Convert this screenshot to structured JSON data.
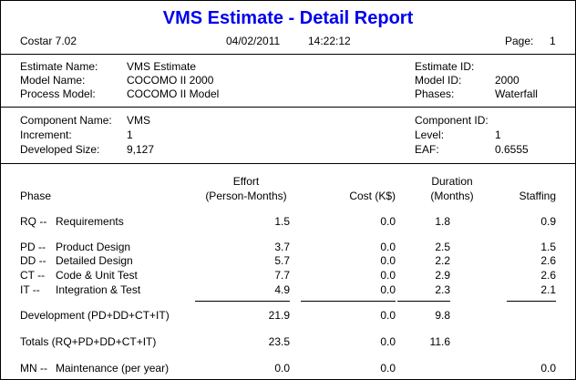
{
  "header": {
    "title": "VMS Estimate - Detail Report",
    "app_version": "Costar 7.02",
    "date": "04/02/2011",
    "time": "14:22:12",
    "page_label": "Page:",
    "page_number": "1"
  },
  "estimate": {
    "name_label": "Estimate Name:",
    "name": "VMS Estimate",
    "model_label": "Model Name:",
    "model": "COCOMO II 2000",
    "process_label": "Process Model:",
    "process": "COCOMO II Model",
    "id_label": "Estimate ID:",
    "id": "",
    "model_id_label": "Model ID:",
    "model_id": "2000",
    "phases_label": "Phases:",
    "phases": "Waterfall"
  },
  "component": {
    "name_label": "Component Name:",
    "name": "VMS",
    "increment_label": "Increment:",
    "increment": "1",
    "size_label": "Developed Size:",
    "size": "9,127",
    "id_label": "Component ID:",
    "id": "",
    "level_label": "Level:",
    "level": "1",
    "eaf_label": "EAF:",
    "eaf": "0.6555"
  },
  "table": {
    "col_phase": "Phase",
    "col_effort_1": "Effort",
    "col_effort_2": "(Person-Months)",
    "col_cost": "Cost (K$)",
    "col_duration_1": "Duration",
    "col_duration_2": "(Months)",
    "col_staffing": "Staffing",
    "rows": [
      {
        "code": "RQ --",
        "name": "Requirements",
        "effort": "1.5",
        "cost": "0.0",
        "duration": "1.8",
        "staffing": "0.9"
      },
      {
        "code": "PD --",
        "name": "Product Design",
        "effort": "3.7",
        "cost": "0.0",
        "duration": "2.5",
        "staffing": "1.5"
      },
      {
        "code": "DD --",
        "name": "Detailed Design",
        "effort": "5.7",
        "cost": "0.0",
        "duration": "2.2",
        "staffing": "2.6"
      },
      {
        "code": "CT --",
        "name": "Code & Unit Test",
        "effort": "7.7",
        "cost": "0.0",
        "duration": "2.9",
        "staffing": "2.6"
      },
      {
        "code": "IT --",
        "name": "Integration & Test",
        "effort": "4.9",
        "cost": "0.0",
        "duration": "2.3",
        "staffing": "2.1"
      }
    ],
    "development": {
      "label": "Development (PD+DD+CT+IT)",
      "effort": "21.9",
      "cost": "0.0",
      "duration": "9.8"
    },
    "totals": {
      "label": "Totals (RQ+PD+DD+CT+IT)",
      "effort": "23.5",
      "cost": "0.0",
      "duration": "11.6"
    },
    "maintenance": {
      "code": "MN --",
      "name": "Maintenance (per year)",
      "effort": "0.0",
      "cost": "0.0",
      "staffing": "0.0"
    }
  }
}
